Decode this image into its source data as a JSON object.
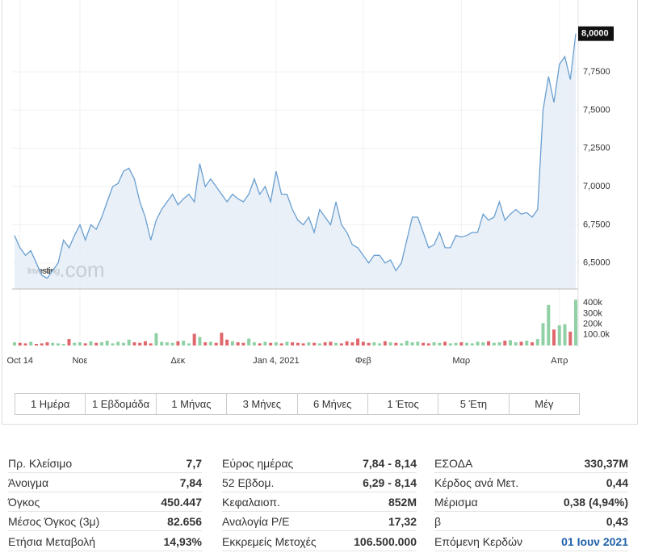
{
  "chart_data": {
    "type": "line",
    "watermark": {
      "brand": "Investing",
      "suffix": ".com"
    },
    "categories": [
      null,
      "Oct 14",
      null,
      null,
      null,
      null,
      null,
      null,
      null,
      null,
      null,
      null,
      "Νοε",
      null,
      null,
      null,
      null,
      null,
      null,
      null,
      null,
      null,
      null,
      null,
      null,
      null,
      null,
      null,
      null,
      null,
      "Δεκ",
      null,
      null,
      null,
      null,
      null,
      null,
      null,
      null,
      null,
      null,
      null,
      null,
      null,
      null,
      null,
      null,
      null,
      "Jan 4, 2021",
      null,
      null,
      null,
      null,
      null,
      null,
      null,
      null,
      null,
      null,
      null,
      null,
      null,
      null,
      null,
      "Φεβ",
      null,
      null,
      null,
      null,
      null,
      null,
      null,
      null,
      null,
      null,
      null,
      null,
      null,
      null,
      null,
      null,
      null,
      "Μαρ",
      null,
      null,
      null,
      null,
      null,
      null,
      null,
      null,
      null,
      null,
      null,
      null,
      null,
      null,
      null,
      null,
      null,
      "Απρ",
      null,
      null,
      null
    ],
    "values": [
      6.68,
      6.6,
      6.55,
      6.58,
      6.5,
      6.42,
      6.4,
      6.45,
      6.5,
      6.65,
      6.6,
      6.68,
      6.75,
      6.65,
      6.75,
      6.72,
      6.8,
      6.9,
      7.0,
      7.02,
      7.1,
      7.12,
      7.05,
      6.9,
      6.8,
      6.65,
      6.78,
      6.85,
      6.9,
      6.95,
      6.88,
      6.92,
      6.95,
      6.9,
      7.15,
      7.0,
      7.05,
      7.0,
      6.95,
      6.9,
      6.95,
      6.92,
      6.9,
      6.95,
      7.05,
      6.95,
      7.0,
      6.9,
      7.1,
      6.95,
      6.95,
      6.85,
      6.78,
      6.75,
      6.8,
      6.7,
      6.85,
      6.8,
      6.75,
      6.9,
      6.75,
      6.7,
      6.62,
      6.6,
      6.55,
      6.5,
      6.55,
      6.55,
      6.5,
      6.52,
      6.45,
      6.5,
      6.65,
      6.8,
      6.8,
      6.7,
      6.6,
      6.62,
      6.7,
      6.6,
      6.6,
      6.68,
      6.67,
      6.68,
      6.7,
      6.7,
      6.82,
      6.78,
      6.8,
      6.9,
      6.78,
      6.82,
      6.85,
      6.82,
      6.83,
      6.8,
      6.85,
      7.5,
      7.72,
      7.55,
      7.8,
      7.85,
      7.7,
      8.0
    ],
    "color": "#6a9fd0",
    "fill": "#e3ecf6",
    "ylim": [
      6.33,
      8.22
    ],
    "yticks": [
      {
        "value": 6.5,
        "label": "6,5000"
      },
      {
        "value": 6.75,
        "label": "6,7500"
      },
      {
        "value": 7.0,
        "label": "7,0000"
      },
      {
        "value": 7.25,
        "label": "7,2500"
      },
      {
        "value": 7.5,
        "label": "7,5000"
      },
      {
        "value": 7.75,
        "label": "7,7500"
      }
    ],
    "current": {
      "value": 8.0,
      "label": "8,0000"
    },
    "grid": true,
    "volume": {
      "type": "bar",
      "values": [
        30000,
        25000,
        20000,
        35000,
        15000,
        20000,
        30000,
        25000,
        20000,
        15000,
        60000,
        25000,
        30000,
        20000,
        40000,
        25000,
        30000,
        45000,
        20000,
        35000,
        25000,
        55000,
        30000,
        25000,
        40000,
        20000,
        115000,
        35000,
        30000,
        25000,
        40000,
        45000,
        20000,
        110000,
        80000,
        30000,
        35000,
        25000,
        120000,
        55000,
        40000,
        30000,
        25000,
        65000,
        30000,
        20000,
        35000,
        25000,
        30000,
        20000,
        35000,
        30000,
        25000,
        20000,
        30000,
        25000,
        20000,
        30000,
        35000,
        25000,
        20000,
        40000,
        30000,
        65000,
        35000,
        25000,
        30000,
        20000,
        40000,
        30000,
        25000,
        20000,
        45000,
        30000,
        35000,
        25000,
        20000,
        30000,
        25000,
        35000,
        20000,
        25000,
        30000,
        25000,
        20000,
        35000,
        30000,
        40000,
        25000,
        30000,
        45000,
        50000,
        30000,
        35000,
        45000,
        30000,
        60000,
        210000,
        380000,
        150000,
        190000,
        200000,
        130000,
        430000
      ],
      "up_color": "#8fd1a5",
      "down_color": "#e0686c",
      "ylim": [
        0,
        500000
      ],
      "yticks": [
        {
          "value": 100000,
          "label": "100.0k"
        },
        {
          "value": 200000,
          "label": "200k"
        },
        {
          "value": 300000,
          "label": "300k"
        },
        {
          "value": 400000,
          "label": "400k"
        }
      ]
    },
    "ranges": [
      "1 Ημέρα",
      "1 Εβδομάδα",
      "1 Μήνας",
      "3 Μήνες",
      "6 Μήνες",
      "1 Έτος",
      "5 Έτη",
      "Μέγ"
    ]
  },
  "table": {
    "columns": [
      [
        [
          "Πρ. Κλείσιμο",
          "7,7"
        ],
        [
          "Άνοιγμα",
          "7,84"
        ],
        [
          "Όγκος",
          "450.447"
        ],
        [
          "Μέσος Όγκος (3μ)",
          "82.656"
        ],
        [
          "Ετήσια Μεταβολή",
          "14,93%"
        ]
      ],
      [
        [
          "Εύρος ημέρας",
          "7,84 - 8,14"
        ],
        [
          "52 Εβδομ.",
          "6,29 - 8,14"
        ],
        [
          "Κεφαλαιοπ.",
          "852M"
        ],
        [
          "Αναλογία P/E",
          "17,32"
        ],
        [
          "Εκκρεμείς Μετοχές",
          "106.500.000"
        ]
      ],
      [
        [
          "ΕΣΟΔΑ",
          "330,37M"
        ],
        [
          "Κέρδος ανά Μετ.",
          "0,44"
        ],
        [
          "Μέρισμα",
          "0,38 (4,94%)"
        ],
        [
          "β",
          "0,43"
        ],
        [
          "Επόμενη Κερδών",
          "01 Ιουν 2021"
        ]
      ]
    ]
  }
}
